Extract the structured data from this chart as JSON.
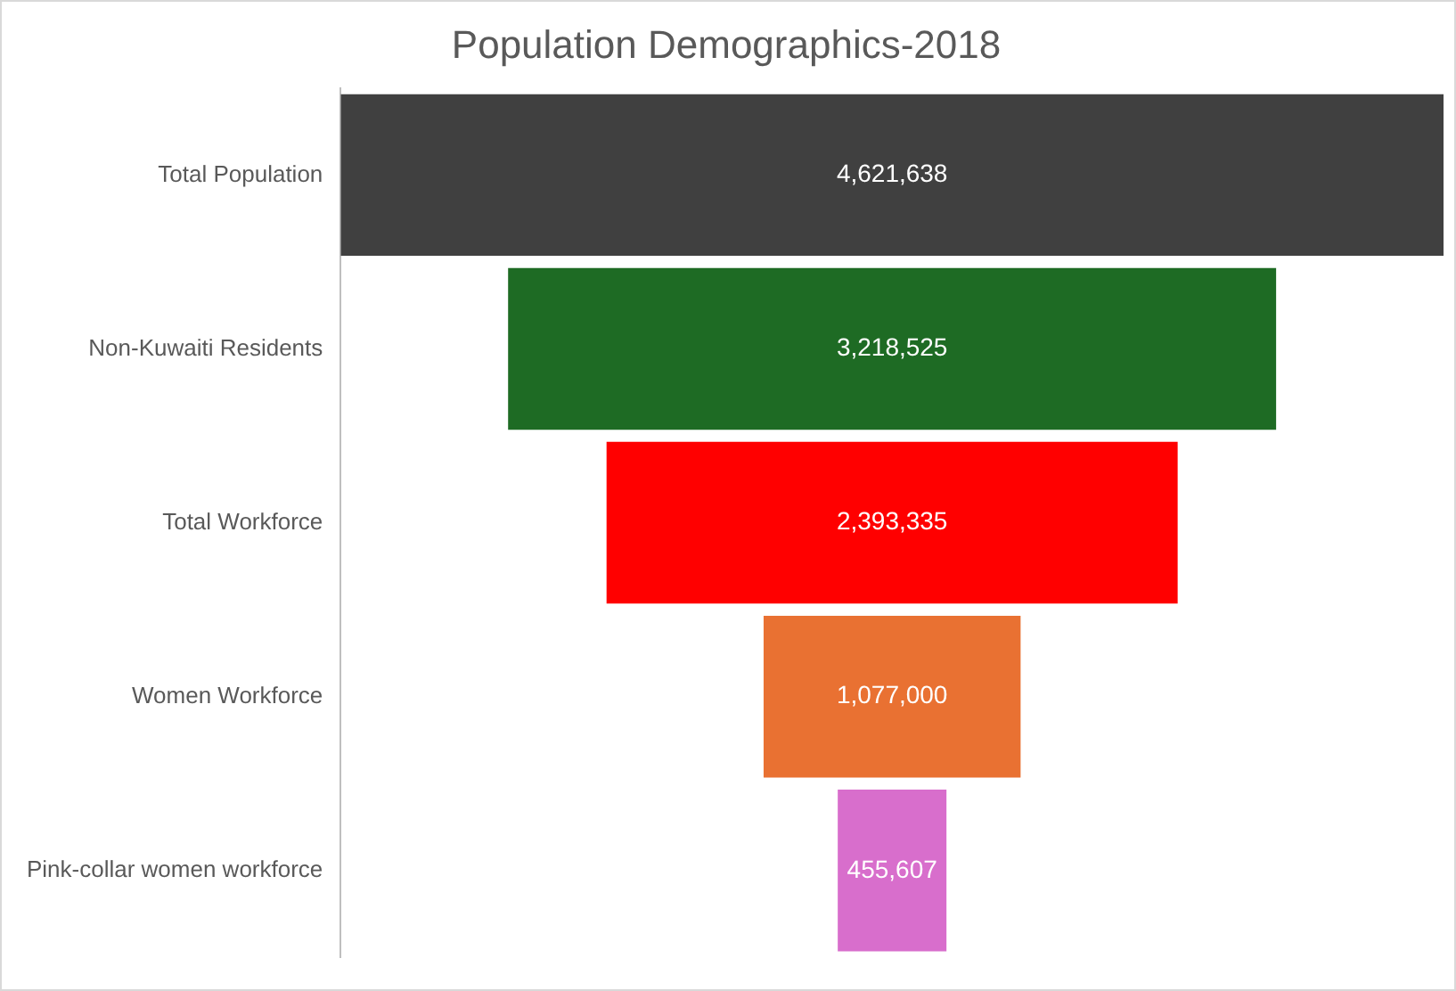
{
  "chart_data": {
    "type": "other",
    "title": "Population Demographics-2018",
    "categories": [
      "Total Population",
      "Non-Kuwaiti Residents",
      "Total Workforce",
      "Women Workforce",
      "Pink-collar women workforce"
    ],
    "values": [
      4621638,
      3218525,
      2393335,
      1077000,
      455607
    ],
    "colors": [
      "#404040",
      "#1e6b24",
      "#ff0000",
      "#e97132",
      "#d86ecc"
    ],
    "value_labels": [
      "4,621,638",
      "3,218,525",
      "2,393,335",
      "1,077,000",
      "455,607"
    ]
  }
}
